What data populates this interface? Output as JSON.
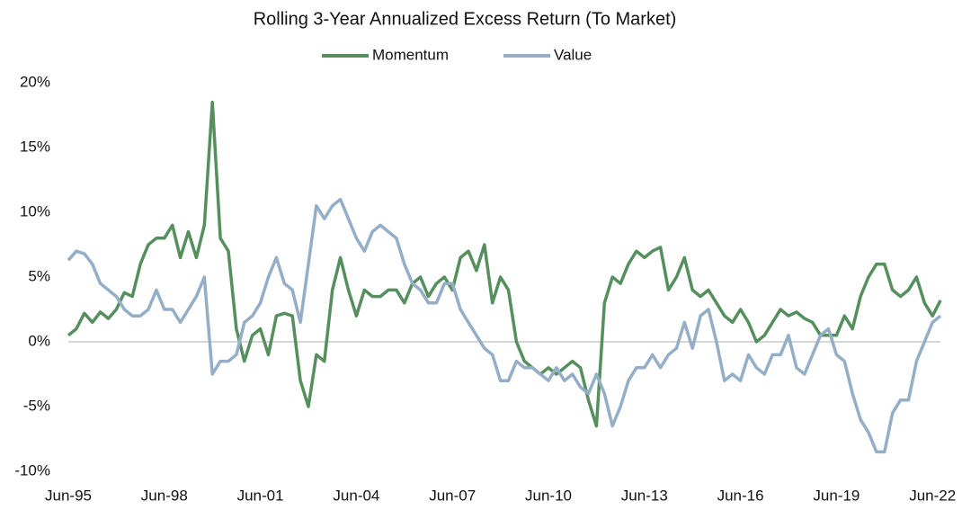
{
  "chart_data": {
    "type": "line",
    "title": "Rolling 3-Year Annualized Excess Return (To Market)",
    "categories": [
      "Jun-95",
      null,
      null,
      null,
      null,
      null,
      null,
      null,
      null,
      null,
      null,
      null,
      "Jun-98",
      null,
      null,
      null,
      null,
      null,
      null,
      null,
      null,
      null,
      null,
      null,
      "Jun-01",
      null,
      null,
      null,
      null,
      null,
      null,
      null,
      null,
      null,
      null,
      null,
      "Jun-04",
      null,
      null,
      null,
      null,
      null,
      null,
      null,
      null,
      null,
      null,
      null,
      "Jun-07",
      null,
      null,
      null,
      null,
      null,
      null,
      null,
      null,
      null,
      null,
      null,
      "Jun-10",
      null,
      null,
      null,
      null,
      null,
      null,
      null,
      null,
      null,
      null,
      null,
      "Jun-13",
      null,
      null,
      null,
      null,
      null,
      null,
      null,
      null,
      null,
      null,
      null,
      "Jun-16",
      null,
      null,
      null,
      null,
      null,
      null,
      null,
      null,
      null,
      null,
      null,
      "Jun-19",
      null,
      null,
      null,
      null,
      null,
      null,
      null,
      null,
      null,
      null,
      null,
      "Jun-22",
      null
    ],
    "series": [
      {
        "name": "Momentum",
        "color": "#558f5e",
        "values": [
          0.5,
          1,
          2.2,
          1.5,
          2.3,
          1.8,
          2.5,
          3.8,
          3.5,
          6,
          7.5,
          8,
          8,
          9,
          6.5,
          8.5,
          6.5,
          9,
          18.5,
          8,
          7,
          1,
          -1.5,
          0.5,
          1,
          -1,
          2,
          2.2,
          2,
          -3,
          -5,
          -1,
          -1.5,
          4,
          6.5,
          4,
          2,
          4,
          3.5,
          3.5,
          4,
          4,
          3,
          4.5,
          5,
          3.5,
          4.5,
          5,
          4,
          6.5,
          7,
          5.5,
          7.5,
          3,
          5,
          4,
          0,
          -1.5,
          -2,
          -2.5,
          -2,
          -2.5,
          -2,
          -1.5,
          -2,
          -4.5,
          -6.5,
          3,
          5,
          4.5,
          6,
          7,
          6.5,
          7,
          7.3,
          4,
          5,
          6.5,
          4,
          3.5,
          4,
          3,
          2,
          1.5,
          2.5,
          1.5,
          0,
          0.5,
          1.5,
          2.5,
          2,
          2.3,
          1.8,
          1.5,
          0.5,
          0.5,
          0.5,
          2,
          1,
          3.5,
          5,
          6,
          6,
          4,
          3.5,
          4,
          5,
          3,
          2,
          3.2
        ]
      },
      {
        "name": "Value",
        "color": "#93aec6",
        "values": [
          6.3,
          7,
          6.8,
          6,
          4.5,
          4,
          3.5,
          2.5,
          2,
          2,
          2.5,
          4,
          2.5,
          2.5,
          1.5,
          2.5,
          3.5,
          5,
          -2.5,
          -1.5,
          -1.5,
          -1,
          1.5,
          2,
          3,
          5,
          6.5,
          4.5,
          4,
          1.5,
          6,
          10.5,
          9.5,
          10.5,
          11,
          9.5,
          8,
          7,
          8.5,
          9,
          8.5,
          8,
          6,
          4.5,
          4,
          3,
          3,
          4.5,
          4.5,
          2.5,
          1.5,
          0.5,
          -0.5,
          -1,
          -3,
          -3,
          -1.5,
          -2,
          -2,
          -2.5,
          -3,
          -2,
          -3,
          -2.5,
          -3.5,
          -4,
          -2.5,
          -4,
          -6.5,
          -5,
          -3,
          -2,
          -2,
          -1,
          -2,
          -1,
          -0.5,
          1.5,
          -0.5,
          2,
          2.5,
          0,
          -3,
          -2.5,
          -3,
          -1,
          -2,
          -2.5,
          -1,
          -1,
          0.5,
          -2,
          -2.5,
          -1,
          0.5,
          1,
          -1,
          -1.5,
          -4,
          -6,
          -7,
          -8.5,
          -8.5,
          -5.5,
          -4.5,
          -4.5,
          -1.5,
          0,
          1.5,
          2
        ]
      }
    ],
    "ylim": [
      -10,
      20
    ],
    "yticks": [
      {
        "value": -10,
        "label": "-10%"
      },
      {
        "value": -5,
        "label": "-5%"
      },
      {
        "value": 0,
        "label": "0%"
      },
      {
        "value": 5,
        "label": "5%"
      },
      {
        "value": 10,
        "label": "10%"
      },
      {
        "value": 15,
        "label": "15%"
      },
      {
        "value": 20,
        "label": "20%"
      }
    ],
    "grid": false,
    "legend": "top"
  }
}
